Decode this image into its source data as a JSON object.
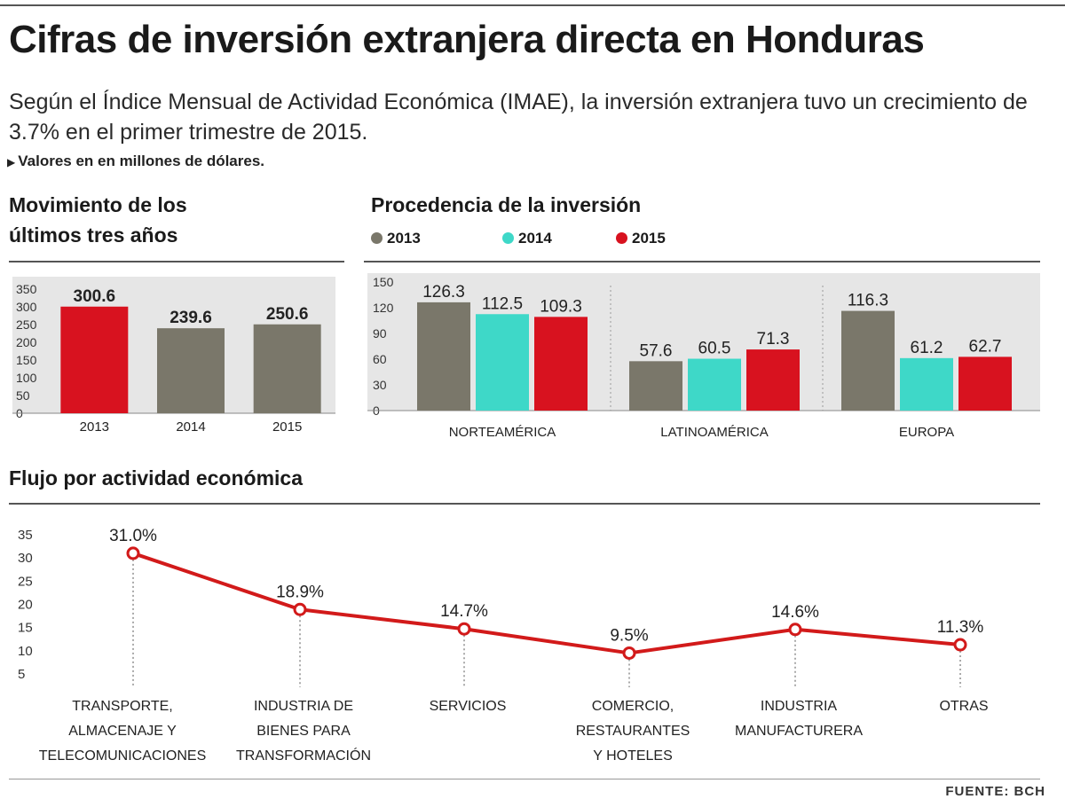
{
  "header": {
    "title": "Cifras de inversión extranjera directa en Honduras",
    "subtitle": "Según el Índice Mensual de Actividad Económica (IMAE), la inversión extranjera tuvo un crecimiento de 3.7% en el primer trimestre de 2015.",
    "note": "Valores en en millones de dólares.",
    "source": "FUENTE: BCH"
  },
  "colors": {
    "c2013": "#7a776a",
    "c2014": "#3ed8c8",
    "c2015": "#d8121f",
    "line": "#d21a1a"
  },
  "chart_data": [
    {
      "id": "movimiento",
      "type": "bar",
      "title": "Movimiento de los últimos tres años",
      "categories": [
        "2013",
        "2014",
        "2015"
      ],
      "values": [
        300.6,
        239.6,
        250.6
      ],
      "value_labels": [
        "300.6",
        "239.6",
        "250.6"
      ],
      "yticks": [
        "0",
        "50",
        "100",
        "150",
        "200",
        "250",
        "300",
        "350"
      ],
      "ylim": [
        0,
        350
      ]
    },
    {
      "id": "procedencia",
      "type": "bar",
      "title": "Procedencia de la inversión",
      "legend": [
        "2013",
        "2014",
        "2015"
      ],
      "categories": [
        "NORTEAMÉRICA",
        "LATINOAMÉRICA",
        "EUROPA"
      ],
      "series": [
        {
          "name": "2013",
          "values": [
            126.3,
            57.6,
            116.3
          ]
        },
        {
          "name": "2014",
          "values": [
            112.5,
            60.5,
            61.2
          ]
        },
        {
          "name": "2015",
          "values": [
            109.3,
            71.3,
            62.7
          ]
        }
      ],
      "yticks": [
        "0",
        "30",
        "60",
        "90",
        "120",
        "150"
      ],
      "ylim": [
        0,
        150
      ]
    },
    {
      "id": "flujo",
      "type": "line",
      "title": "Flujo por actividad económica",
      "categories": [
        [
          "TRANSPORTE,",
          "ALMACENAJE Y",
          "TELECOMUNICACIONES"
        ],
        [
          "INDUSTRIA DE",
          "BIENES PARA",
          "TRANSFORMACIÓN"
        ],
        [
          "SERVICIOS"
        ],
        [
          "COMERCIO,",
          "RESTAURANTES",
          "Y HOTELES"
        ],
        [
          "INDUSTRIA",
          "MANUFACTURERA"
        ],
        [
          "OTRAS"
        ]
      ],
      "values": [
        31.0,
        18.9,
        14.7,
        9.5,
        14.6,
        11.3
      ],
      "value_labels": [
        "31.0%",
        "18.9%",
        "14.7%",
        "9.5%",
        "14.6%",
        "11.3%"
      ],
      "yticks": [
        "5",
        "10",
        "15",
        "20",
        "25",
        "30",
        "35"
      ],
      "ylim": [
        5,
        35
      ]
    }
  ]
}
